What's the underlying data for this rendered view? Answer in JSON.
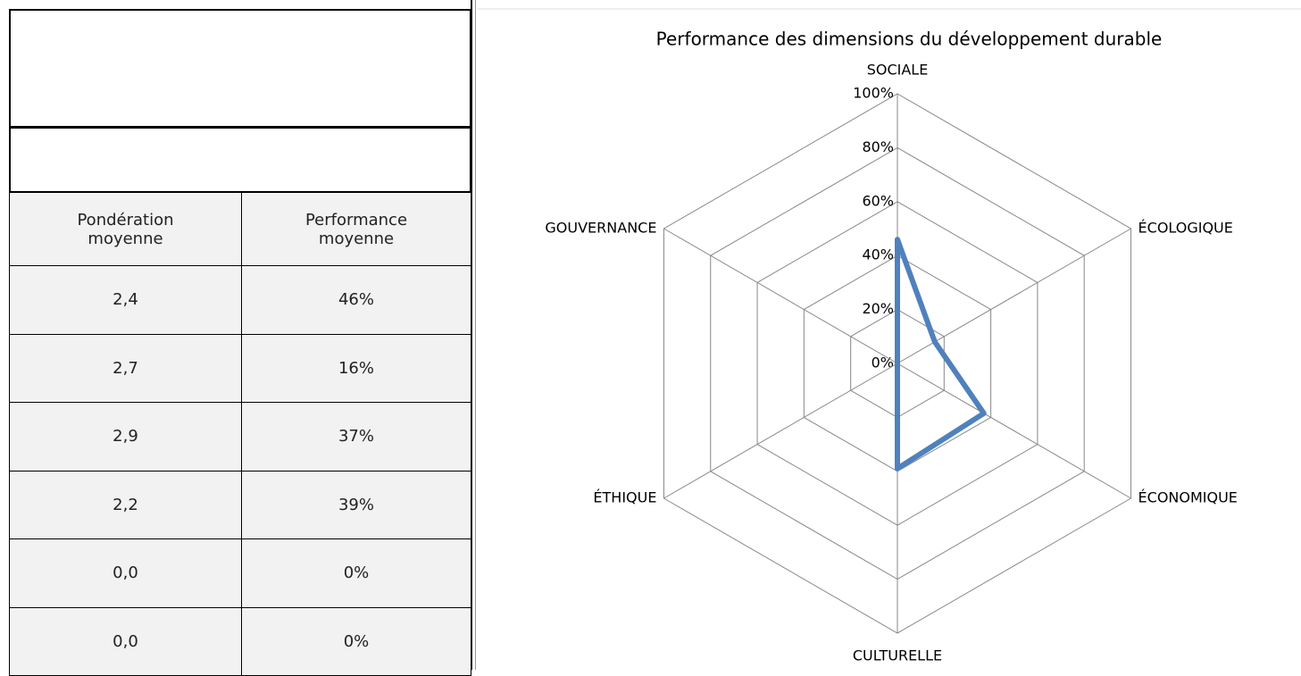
{
  "table": {
    "columns": [
      "Pondération moyenne",
      "Performance moyenne"
    ],
    "rows": [
      [
        "2,4",
        "46%"
      ],
      [
        "2,7",
        "16%"
      ],
      [
        "2,9",
        "37%"
      ],
      [
        "2,2",
        "39%"
      ],
      [
        "0,0",
        "0%"
      ],
      [
        "0,0",
        "0%"
      ]
    ]
  },
  "chart_data": {
    "type": "radar",
    "title": "Performance des dimensions du développement durable",
    "categories": [
      "SOCIALE",
      "ÉCOLOGIQUE",
      "ÉCONOMIQUE",
      "CULTURELLE",
      "ÉTHIQUE",
      "GOUVERNANCE"
    ],
    "values": [
      46,
      16,
      37,
      39,
      0,
      0
    ],
    "color": "#4f81bd",
    "ylim": [
      0,
      100
    ],
    "yticks": [
      {
        "value": 0,
        "label": "0%"
      },
      {
        "value": 20,
        "label": "20%"
      },
      {
        "value": 40,
        "label": "40%"
      },
      {
        "value": 60,
        "label": "60%"
      },
      {
        "value": 80,
        "label": "80%"
      },
      {
        "value": 100,
        "label": "100%"
      }
    ],
    "grid": true
  }
}
